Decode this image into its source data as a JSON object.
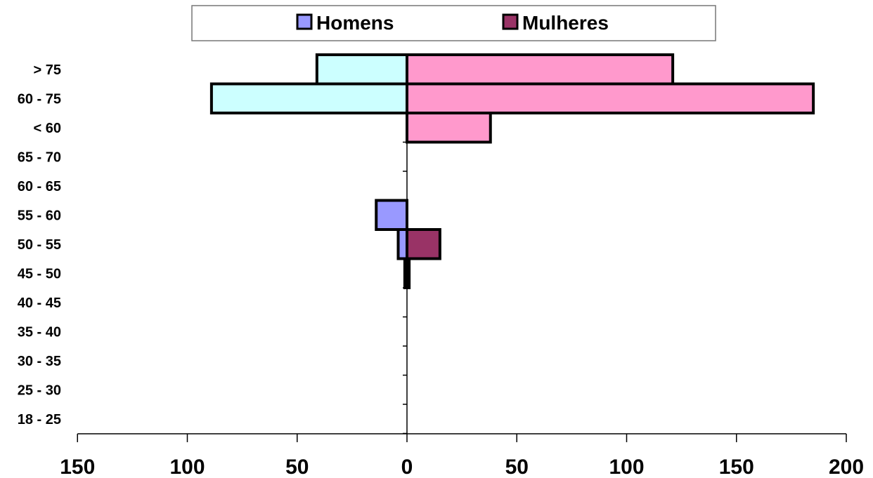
{
  "chart_data": {
    "type": "bar",
    "orientation": "horizontal",
    "categories": [
      "> 75",
      "60 - 75",
      "< 60",
      "65 - 70",
      "60 - 65",
      "55 - 60",
      "50 - 55",
      "45 - 50",
      "40 - 45",
      "35 - 40",
      "30 - 35",
      "25 - 30",
      "18 - 25"
    ],
    "x_ticks": [
      {
        "value": -150,
        "label": "150"
      },
      {
        "value": -100,
        "label": "100"
      },
      {
        "value": -50,
        "label": "50"
      },
      {
        "value": 0,
        "label": "0"
      },
      {
        "value": 50,
        "label": "50"
      },
      {
        "value": 100,
        "label": "100"
      },
      {
        "value": 150,
        "label": "150"
      },
      {
        "value": 200,
        "label": "200"
      }
    ],
    "xlim": [
      -150,
      200
    ],
    "grid": false,
    "legend_position": "top",
    "series": [
      {
        "name": "Homens",
        "color": "#9999ff",
        "values": [
          0,
          0,
          0,
          0,
          0,
          -14,
          -4,
          -1,
          0,
          0,
          0,
          0,
          0
        ]
      },
      {
        "name": "Mulheres",
        "color": "#993366",
        "values": [
          0,
          0,
          0,
          0,
          0,
          0,
          15,
          1,
          0,
          0,
          0,
          0,
          0
        ]
      },
      {
        "name": "",
        "color": "#ccffff",
        "values": [
          -41,
          -89,
          0,
          0,
          0,
          0,
          0,
          0,
          0,
          0,
          0,
          0,
          0
        ]
      },
      {
        "name": "",
        "color": "#ff99cc",
        "values": [
          121,
          185,
          38,
          0,
          0,
          0,
          0,
          0,
          0,
          0,
          0,
          0,
          0
        ]
      }
    ]
  }
}
